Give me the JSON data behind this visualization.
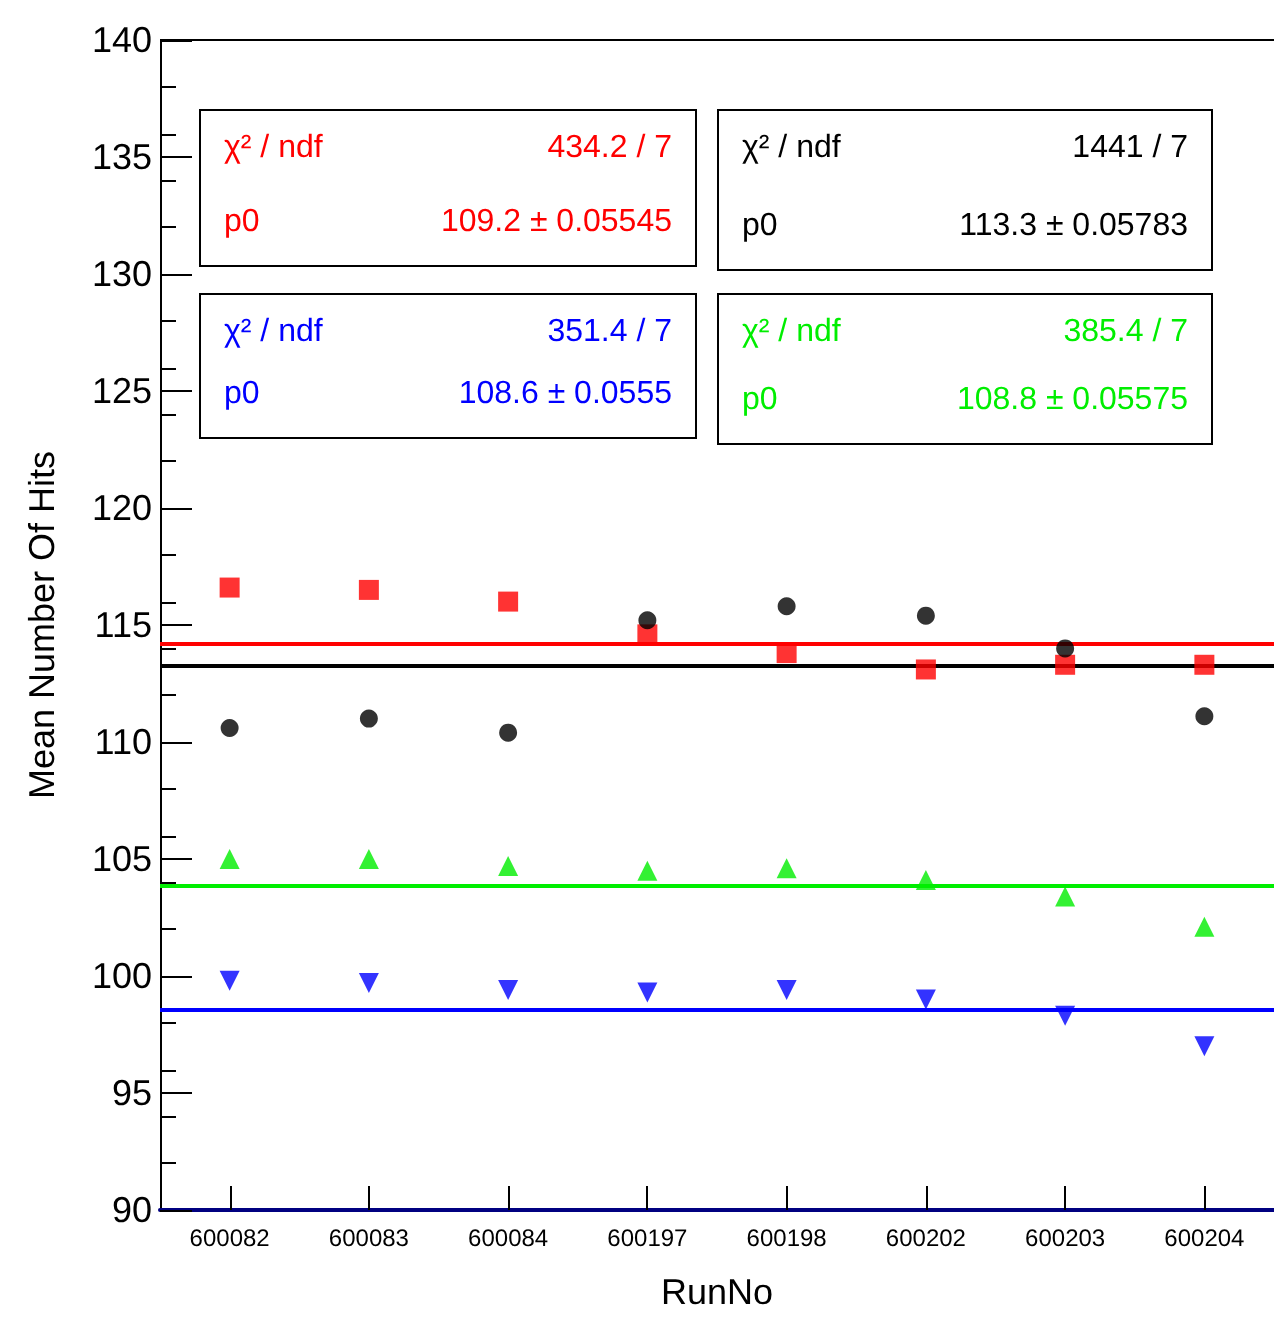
{
  "chart_data": {
    "type": "scatter",
    "xlabel": "RunNo",
    "ylabel": "Mean Number Of Hits",
    "categories": [
      "600082",
      "600083",
      "600084",
      "600197",
      "600198",
      "600202",
      "600203",
      "600204"
    ],
    "series": [
      {
        "color": "#ff0000",
        "marker": "square",
        "values": [
          116.6,
          116.5,
          116.0,
          114.6,
          113.8,
          113.1,
          113.3,
          113.3
        ]
      },
      {
        "color": "#000000",
        "marker": "circle",
        "values": [
          110.6,
          111.0,
          110.4,
          115.2,
          115.8,
          115.4,
          114.0,
          111.1
        ]
      },
      {
        "color": "#0000ff",
        "marker": "triangle-down",
        "values": [
          99.8,
          99.7,
          99.4,
          99.3,
          99.4,
          99.0,
          98.3,
          97.0
        ]
      },
      {
        "color": "#00ee00",
        "marker": "triangle",
        "values": [
          105.0,
          105.0,
          104.7,
          104.5,
          104.6,
          104.1,
          103.4,
          102.1
        ]
      }
    ],
    "ylim": [
      90,
      140
    ],
    "yticks": [
      90,
      95,
      100,
      105,
      110,
      115,
      120,
      125,
      130,
      135,
      140
    ],
    "ref_lines": [
      {
        "axis": "y",
        "value": 114.2,
        "color": "#ff0000",
        "line_style": "solid"
      },
      {
        "axis": "y",
        "value": 113.3,
        "color": "#000000",
        "line_style": "solid"
      },
      {
        "axis": "y",
        "value": 98.6,
        "color": "#0000ff",
        "line_style": "solid"
      },
      {
        "axis": "y",
        "value": 103.9,
        "color": "#00ee00",
        "line_style": "solid"
      }
    ],
    "annotations": [
      "χ² / ndf",
      "434.2 / 7",
      "p0",
      "109.2 ± 0.05545",
      "χ² / ndf",
      "1441 / 7",
      "p0",
      "113.3 ± 0.05783",
      "χ² / ndf",
      "351.4 / 7",
      "p0",
      "108.6 ± 0.0555",
      "χ² / ndf",
      "385.4 / 7",
      "p0",
      "108.8 ± 0.05575"
    ]
  }
}
